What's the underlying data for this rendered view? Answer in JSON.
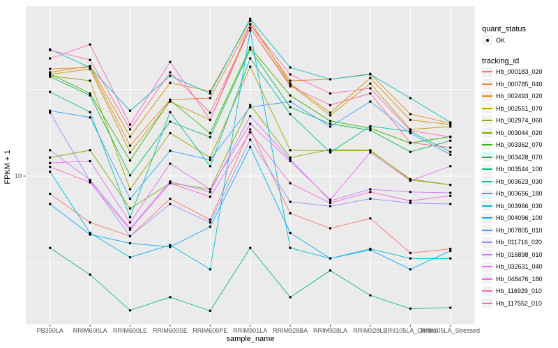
{
  "legend": {
    "quant_status_title": "quant_status",
    "ok_label": "OK",
    "tracking_id_title": "tracking_id"
  },
  "chart_data": {
    "type": "line",
    "title": "",
    "xlabel": "sample_name",
    "ylabel": "FPKM + 1",
    "y_scale": "log10",
    "y_axis_tick_values": [
      10
    ],
    "y_axis_tick_labels": [
      "10"
    ],
    "y_minor_tick_values": [
      3.16,
      31.6
    ],
    "ylim": [
      1.4,
      95
    ],
    "grid": "on",
    "legend_position": "right",
    "panel_background": "#EBEBEB",
    "grid_color": "#FFFFFF",
    "axis_text_color": "#4D4D4D",
    "point_color": "#000000",
    "quant_status_values": [
      "OK"
    ],
    "categories": [
      "PB350LA",
      "RRIM600LA",
      "RRIM600LE",
      "RRIM600SE",
      "RRIM600PE",
      "RRIM901LA",
      "RRIM928BA",
      "RRIM928LA",
      "RRIM928LE",
      "RRII105LA_Control",
      "RRII105LA_Stressed"
    ],
    "series": [
      {
        "name": "Hb_000183_020",
        "color": "#F8766D",
        "values": [
          7.9,
          5.4,
          4.5,
          7.4,
          5.6,
          18.6,
          6.1,
          5.0,
          5.7,
          3.6,
          3.8
        ]
      },
      {
        "name": "Hb_000785_040",
        "color": "#EA8331",
        "values": [
          41.5,
          42.3,
          15.0,
          27.6,
          28.2,
          75.1,
          35.5,
          36.2,
          38.9,
          22.8,
          20.2
        ]
      },
      {
        "name": "Hb_002493_020",
        "color": "#D89000",
        "values": [
          39.7,
          43.2,
          16.9,
          34.5,
          30.9,
          78.6,
          34.2,
          23.2,
          36.8,
          21.1,
          19.8
        ]
      },
      {
        "name": "Hb_002551_070",
        "color": "#C09B00",
        "values": [
          38.6,
          41.5,
          13.7,
          26.9,
          21.1,
          71.7,
          33.6,
          22.4,
          34.2,
          18.6,
          19.3
        ]
      },
      {
        "name": "Hb_002974_060",
        "color": "#A3A500",
        "values": [
          37.9,
          35.5,
          8.4,
          17.7,
          12.8,
          42.7,
          14.1,
          14.0,
          14.0,
          9.6,
          8.9
        ]
      },
      {
        "name": "Hb_003044_020",
        "color": "#7CAE00",
        "values": [
          12.8,
          14.1,
          6.5,
          9.1,
          8.4,
          25.7,
          12.8,
          14.2,
          14.1,
          9.5,
          8.9
        ]
      },
      {
        "name": "Hb_003362_070",
        "color": "#39B600",
        "values": [
          38.9,
          30.0,
          12.3,
          27.4,
          17.7,
          55.3,
          29.2,
          20.8,
          18.9,
          15.5,
          16.9
        ]
      },
      {
        "name": "Hb_003428_070",
        "color": "#00BB4E",
        "values": [
          37.5,
          29.2,
          10.1,
          20.6,
          16.8,
          53.8,
          25.0,
          20.0,
          18.4,
          13.8,
          16.0
        ]
      },
      {
        "name": "Hb_003544_100",
        "color": "#00BF7D",
        "values": [
          3.85,
          2.7,
          1.68,
          2.0,
          1.67,
          3.85,
          2.0,
          2.85,
          2.05,
          1.72,
          1.74
        ]
      },
      {
        "name": "Hb_003623_030",
        "color": "#00C1A3",
        "values": [
          30.6,
          23.4,
          5.8,
          23.4,
          11.4,
          47.7,
          22.8,
          13.7,
          19.4,
          18.1,
          13.8
        ]
      },
      {
        "name": "Hb_003656_180",
        "color": "#00BFC4",
        "values": [
          53.8,
          42.3,
          23.8,
          37.9,
          30.0,
          80.8,
          42.3,
          36.2,
          38.6,
          28.2,
          20.4
        ]
      },
      {
        "name": "Hb_003966_030",
        "color": "#00BAE0",
        "values": [
          10.6,
          4.7,
          3.4,
          4.0,
          2.9,
          69.1,
          3.85,
          3.35,
          3.8,
          3.35,
          3.35
        ]
      },
      {
        "name": "Hb_004096_100",
        "color": "#00B0F6",
        "values": [
          6.9,
          4.6,
          4.1,
          3.9,
          5.1,
          14.7,
          4.7,
          3.35,
          3.75,
          2.9,
          3.7
        ]
      },
      {
        "name": "Hb_007805_010",
        "color": "#35A2FF",
        "values": [
          23.8,
          21.8,
          7.4,
          14.0,
          12.4,
          25.0,
          26.9,
          19.3,
          26.9,
          17.7,
          13.3
        ]
      },
      {
        "name": "Hb_011716_020",
        "color": "#9590FF",
        "values": [
          23.2,
          9.4,
          4.5,
          6.9,
          5.4,
          16.2,
          7.1,
          6.7,
          7.4,
          7.0,
          6.9
        ]
      },
      {
        "name": "Hb_016898_010",
        "color": "#C77CFF",
        "values": [
          14.1,
          9.5,
          5.0,
          9.3,
          8.1,
          22.2,
          12.5,
          7.2,
          8.4,
          8.1,
          8.0
        ]
      },
      {
        "name": "Hb_032631_040",
        "color": "#E76BF3",
        "values": [
          11.9,
          12.2,
          5.4,
          11.8,
          8.4,
          20.0,
          12.2,
          7.3,
          13.7,
          9.4,
          11.4
        ]
      },
      {
        "name": "Hb_048476_180",
        "color": "#FA62DB",
        "values": [
          11.3,
          9.2,
          4.9,
          9.1,
          7.6,
          17.9,
          9.1,
          7.0,
          8.1,
          7.2,
          7.7
        ]
      },
      {
        "name": "Hb_116929_010",
        "color": "#FF62BC",
        "values": [
          47.7,
          57.4,
          19.8,
          45.6,
          21.1,
          75.1,
          38.6,
          30.0,
          32.1,
          18.3,
          16.8
        ]
      },
      {
        "name": "Hb_117552_010",
        "color": "#FF6A98",
        "values": [
          53.3,
          46.8,
          18.6,
          39.7,
          23.2,
          71.7,
          33.0,
          25.7,
          30.0,
          15.6,
          14.6
        ]
      }
    ]
  }
}
